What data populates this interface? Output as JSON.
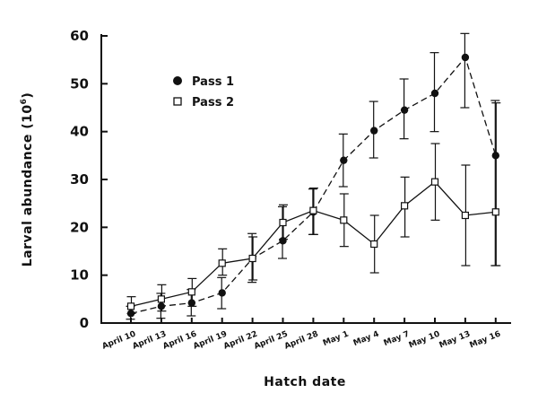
{
  "chart_data": {
    "type": "line",
    "title": "",
    "xlabel": "Hatch date",
    "ylabel": "Larval abundance (10⁶)",
    "ylabel_base": "Larval abundance (10",
    "ylabel_exp": "6",
    "ylabel_close": ")",
    "ylim": [
      0,
      60
    ],
    "yticks": [
      0,
      10,
      20,
      30,
      40,
      50,
      60
    ],
    "categories": [
      "April 10",
      "April 13",
      "April 16",
      "April 19",
      "April 22",
      "April 25",
      "April 28",
      "May 1",
      "May 4",
      "May 7",
      "May 10",
      "May 13",
      "May 16"
    ],
    "grid": false,
    "legend_position": "top-left",
    "series": [
      {
        "name": "Pass 1",
        "marker": "filled-circle",
        "line": "dashed",
        "values": [
          2,
          3.5,
          4.2,
          6.3,
          13.5,
          17.2,
          23.2,
          34,
          40.2,
          44.5,
          48,
          55.5,
          35
        ],
        "err_low": [
          0.8,
          1,
          1.5,
          3,
          8.5,
          13.5,
          18.5,
          28.5,
          34.5,
          38.5,
          40,
          45,
          12
        ],
        "err_high": [
          3.5,
          6.2,
          7,
          9.5,
          18.7,
          24.3,
          28,
          39.5,
          46.3,
          51,
          56.5,
          60.5,
          46.5
        ]
      },
      {
        "name": "Pass 2",
        "marker": "open-square",
        "line": "solid",
        "values": [
          3.5,
          5,
          6.5,
          12.5,
          13.5,
          21,
          23.5,
          21.5,
          16.5,
          24.5,
          29.5,
          22.5,
          23.2
        ],
        "err_low": [
          2,
          2.5,
          3.5,
          10,
          9,
          17.5,
          18.5,
          16,
          10.5,
          18,
          21.5,
          12,
          12
        ],
        "err_high": [
          5.5,
          8,
          9.3,
          15.5,
          18,
          24.7,
          28.2,
          27,
          22.5,
          30.5,
          37.5,
          33,
          46
        ]
      }
    ]
  }
}
